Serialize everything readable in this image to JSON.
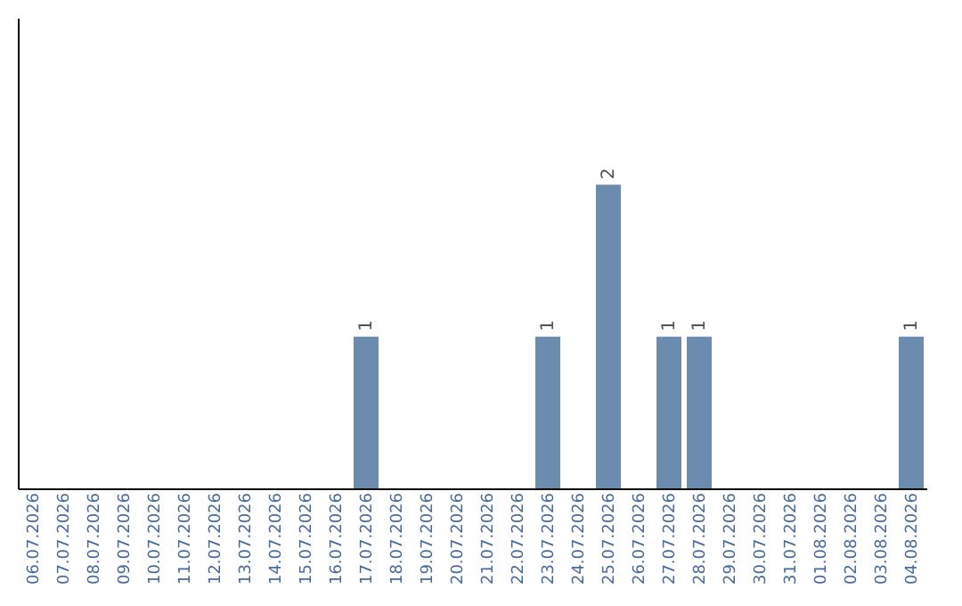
{
  "chart_data": {
    "type": "bar",
    "categories": [
      "06.07.2026",
      "07.07.2026",
      "08.07.2026",
      "09.07.2026",
      "10.07.2026",
      "11.07.2026",
      "12.07.2026",
      "13.07.2026",
      "14.07.2026",
      "15.07.2026",
      "16.07.2026",
      "17.07.2026",
      "18.07.2026",
      "19.07.2026",
      "20.07.2026",
      "21.07.2026",
      "22.07.2026",
      "23.07.2026",
      "24.07.2026",
      "25.07.2026",
      "26.07.2026",
      "27.07.2026",
      "28.07.2026",
      "29.07.2026",
      "30.07.2026",
      "31.07.2026",
      "01.08.2026",
      "02.08.2026",
      "03.08.2026",
      "04.08.2026"
    ],
    "values": [
      0,
      0,
      0,
      0,
      0,
      0,
      0,
      0,
      0,
      0,
      0,
      1,
      0,
      0,
      0,
      0,
      0,
      1,
      0,
      2,
      0,
      1,
      1,
      0,
      0,
      0,
      0,
      0,
      0,
      1
    ],
    "value_labels": [
      null,
      null,
      null,
      null,
      null,
      null,
      null,
      null,
      null,
      null,
      null,
      "1",
      null,
      null,
      null,
      null,
      null,
      "1",
      null,
      "2",
      null,
      "1",
      "1",
      null,
      null,
      null,
      null,
      null,
      null,
      "1"
    ],
    "color": "#6b8cae",
    "ylim": [
      0,
      3.1
    ],
    "tick_labels": "x",
    "grid": false
  }
}
